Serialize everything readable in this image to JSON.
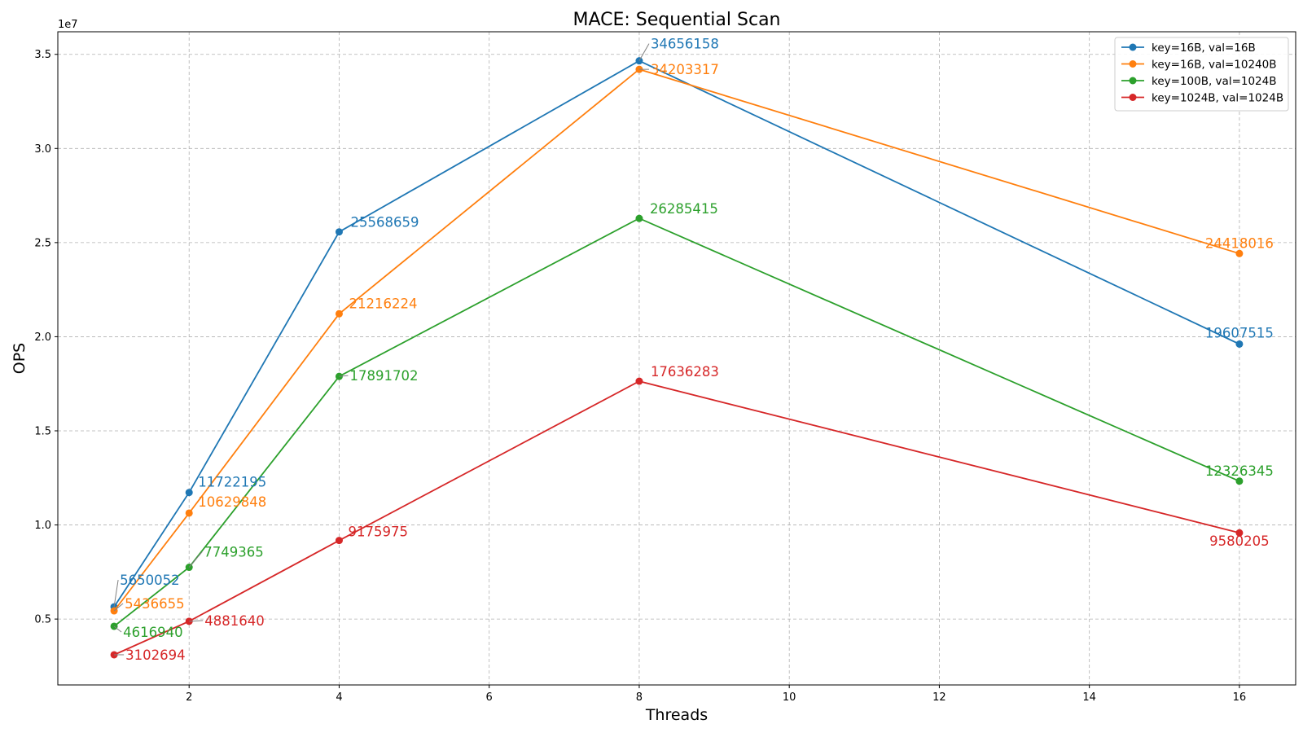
{
  "chart_data": {
    "type": "line",
    "title": "MACE: Sequential Scan",
    "xlabel": "Threads",
    "ylabel": "OPS",
    "y_multiplier_label": "1e7",
    "x": [
      1,
      2,
      4,
      8,
      16
    ],
    "xlim": [
      0.25,
      16.75
    ],
    "ylim": [
      1500000,
      36200000
    ],
    "xticks": [
      2,
      4,
      6,
      8,
      10,
      12,
      14,
      16
    ],
    "yticks": [
      5000000,
      10000000,
      15000000,
      20000000,
      25000000,
      30000000,
      35000000
    ],
    "ytick_labels": [
      "0.5",
      "1.0",
      "1.5",
      "2.0",
      "2.5",
      "3.0",
      "3.5"
    ],
    "grid": true,
    "legend_position": "top-right",
    "series": [
      {
        "name": "key=16B, val=16B",
        "color": "#1f77b4",
        "values": [
          5650052,
          11722195,
          25568659,
          34656158,
          19607515
        ]
      },
      {
        "name": "key=16B, val=10240B",
        "color": "#ff7f0e",
        "values": [
          5436655,
          10629848,
          21216224,
          34203317,
          24418016
        ]
      },
      {
        "name": "key=100B, val=1024B",
        "color": "#2ca02c",
        "values": [
          4616940,
          7749365,
          17891702,
          26285415,
          12326345
        ]
      },
      {
        "name": "key=1024B, val=1024B",
        "color": "#d62728",
        "values": [
          3102694,
          4881640,
          9175975,
          17636283,
          9580205
        ]
      }
    ],
    "annotations": [
      {
        "series": 0,
        "index": 0,
        "text": "5650052"
      },
      {
        "series": 0,
        "index": 1,
        "text": "11722195"
      },
      {
        "series": 0,
        "index": 2,
        "text": "25568659"
      },
      {
        "series": 0,
        "index": 3,
        "text": "34656158"
      },
      {
        "series": 0,
        "index": 4,
        "text": "19607515"
      },
      {
        "series": 1,
        "index": 0,
        "text": "5436655"
      },
      {
        "series": 1,
        "index": 1,
        "text": "10629848"
      },
      {
        "series": 1,
        "index": 2,
        "text": "21216224"
      },
      {
        "series": 1,
        "index": 3,
        "text": "34203317"
      },
      {
        "series": 1,
        "index": 4,
        "text": "24418016"
      },
      {
        "series": 2,
        "index": 0,
        "text": "4616940"
      },
      {
        "series": 2,
        "index": 1,
        "text": "7749365"
      },
      {
        "series": 2,
        "index": 2,
        "text": "17891702"
      },
      {
        "series": 2,
        "index": 3,
        "text": "26285415"
      },
      {
        "series": 2,
        "index": 4,
        "text": "12326345"
      },
      {
        "series": 3,
        "index": 0,
        "text": "3102694"
      },
      {
        "series": 3,
        "index": 1,
        "text": "4881640"
      },
      {
        "series": 3,
        "index": 2,
        "text": "9175975"
      },
      {
        "series": 3,
        "index": 3,
        "text": "17636283"
      },
      {
        "series": 3,
        "index": 4,
        "text": "9580205"
      }
    ]
  }
}
